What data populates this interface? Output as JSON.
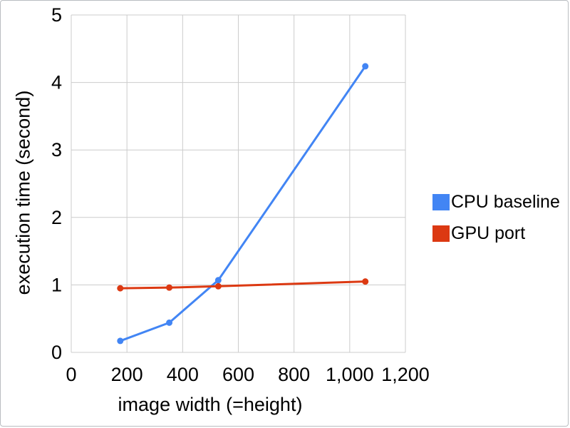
{
  "chart_data": {
    "type": "line",
    "x": [
      176,
      352,
      528,
      1056
    ],
    "series": [
      {
        "name": "CPU baseline",
        "color": "#4285f4",
        "values": [
          0.17,
          0.44,
          1.07,
          4.24
        ]
      },
      {
        "name": "GPU port",
        "color": "#dc3912",
        "values": [
          0.95,
          0.96,
          0.98,
          1.05
        ]
      }
    ],
    "title": "",
    "xlabel": "image width (=height)",
    "ylabel": "execution time (second)",
    "xlim": [
      0,
      1200
    ],
    "ylim": [
      0,
      5
    ],
    "x_tick_values": [
      0,
      200,
      400,
      600,
      800,
      1000,
      1200
    ],
    "x_tick_labels": [
      "0",
      "200",
      "400",
      "600",
      "800",
      "1,000",
      "1,200"
    ],
    "y_tick_values": [
      0,
      1,
      2,
      3,
      4,
      5
    ],
    "y_tick_labels": [
      "0",
      "1",
      "2",
      "3",
      "4",
      "5"
    ],
    "grid": true,
    "legend_position": "right"
  },
  "colors": {
    "grid": "#cccccc",
    "text": "#000000",
    "frame_border": "#b9bdc1",
    "background": "#ffffff"
  }
}
